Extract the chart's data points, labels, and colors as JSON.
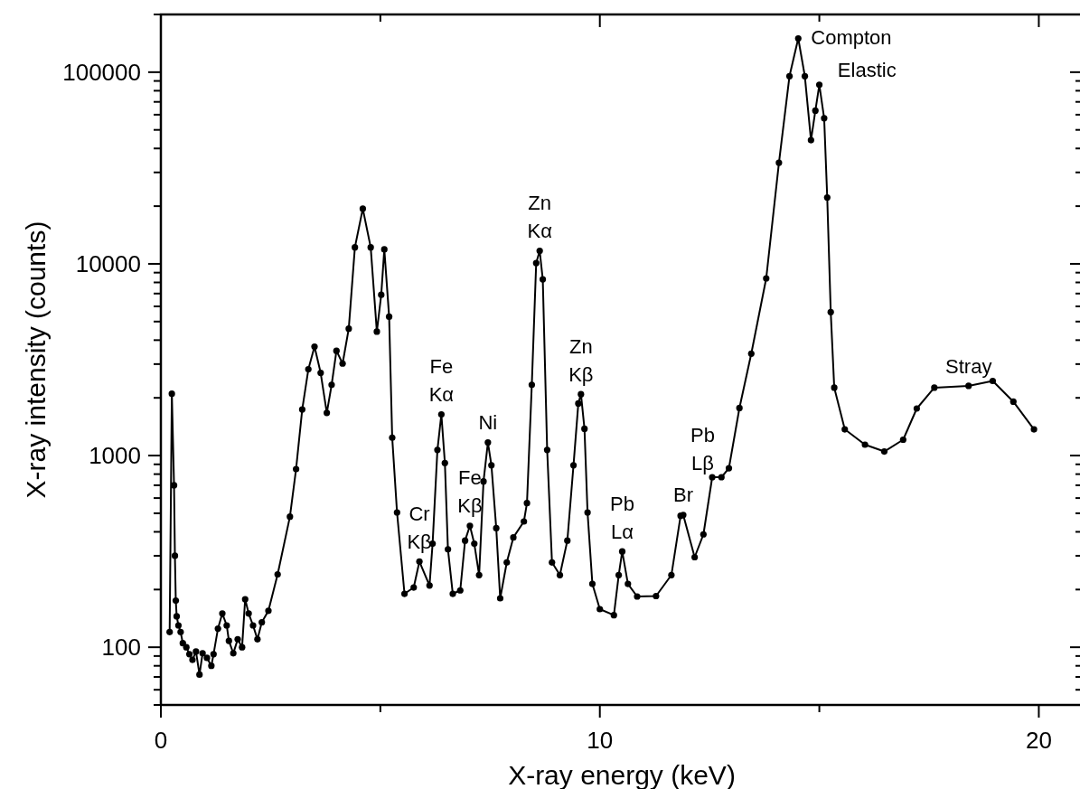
{
  "chart_data": {
    "type": "line",
    "xlabel": "X-ray energy (keV)",
    "ylabel": "X-ray intensity (counts)",
    "log": "y",
    "grid": false,
    "marker": "circle",
    "line_style": "solid",
    "xlim": [
      0,
      21
    ],
    "xticks": [
      0,
      {
        "value": 5,
        "label": null
      },
      10,
      {
        "value": 15,
        "label": null
      },
      20
    ],
    "ylim": [
      50,
      200000
    ],
    "yticks": [
      {
        "value": 50,
        "label": null
      },
      {
        "value": 60,
        "label": null
      },
      {
        "value": 70,
        "label": null
      },
      {
        "value": 80,
        "label": null
      },
      {
        "value": 90,
        "label": null
      },
      100,
      {
        "value": 200,
        "label": null
      },
      {
        "value": 300,
        "label": null
      },
      {
        "value": 400,
        "label": null
      },
      {
        "value": 500,
        "label": null
      },
      {
        "value": 600,
        "label": null
      },
      {
        "value": 700,
        "label": null
      },
      {
        "value": 800,
        "label": null
      },
      {
        "value": 900,
        "label": null
      },
      1000,
      {
        "value": 2000,
        "label": null
      },
      {
        "value": 3000,
        "label": null
      },
      {
        "value": 4000,
        "label": null
      },
      {
        "value": 5000,
        "label": null
      },
      {
        "value": 6000,
        "label": null
      },
      {
        "value": 7000,
        "label": null
      },
      {
        "value": 8000,
        "label": null
      },
      {
        "value": 9000,
        "label": null
      },
      10000,
      {
        "value": 20000,
        "label": null
      },
      {
        "value": 30000,
        "label": null
      },
      {
        "value": 40000,
        "label": null
      },
      {
        "value": 50000,
        "label": null
      },
      {
        "value": 60000,
        "label": null
      },
      {
        "value": 70000,
        "label": null
      },
      {
        "value": 80000,
        "label": null
      },
      {
        "value": 90000,
        "label": null
      },
      100000,
      {
        "value": 200000,
        "label": null
      }
    ],
    "series": [
      {
        "color": "#000000",
        "x": [
          0.2,
          0.25,
          0.3,
          0.32,
          0.34,
          0.36,
          0.4,
          0.45,
          0.5,
          0.58,
          0.65,
          0.72,
          0.8,
          0.88,
          0.95,
          1.05,
          1.15,
          1.2,
          1.3,
          1.4,
          1.5,
          1.55,
          1.65,
          1.75,
          1.85,
          1.92,
          2.0,
          2.1,
          2.2,
          2.3,
          2.45,
          2.66,
          2.94,
          3.08,
          3.22,
          3.36,
          3.5,
          3.64,
          3.78,
          3.89,
          4.0,
          4.14,
          4.28,
          4.42,
          4.6,
          4.78,
          4.92,
          5.02,
          5.09,
          5.2,
          5.27,
          5.38,
          5.55,
          5.76,
          5.89,
          6.12,
          6.19,
          6.3,
          6.39,
          6.47,
          6.54,
          6.65,
          6.82,
          6.93,
          7.04,
          7.14,
          7.25,
          7.35,
          7.45,
          7.53,
          7.64,
          7.73,
          7.88,
          8.03,
          8.27,
          8.34,
          8.45,
          8.55,
          8.63,
          8.7,
          8.8,
          8.91,
          9.09,
          9.26,
          9.4,
          9.51,
          9.57,
          9.65,
          9.72,
          9.83,
          10.0,
          10.32,
          10.43,
          10.51,
          10.64,
          10.85,
          11.28,
          11.63,
          11.84,
          11.9,
          12.16,
          12.36,
          12.56,
          12.77,
          12.94,
          13.18,
          13.45,
          13.79,
          14.08,
          14.32,
          14.52,
          14.67,
          14.81,
          14.91,
          15.0,
          15.11,
          15.18,
          15.26,
          15.34,
          15.58,
          16.04,
          16.48,
          16.91,
          17.22,
          17.62,
          18.4,
          18.95,
          19.42,
          19.89
        ],
        "values": [
          120,
          2100,
          700,
          300,
          175,
          145,
          130,
          120,
          105,
          100,
          92,
          86,
          95,
          72,
          93,
          88,
          80,
          92,
          125,
          150,
          130,
          108,
          93,
          110,
          100,
          178,
          150,
          130,
          110,
          135,
          155,
          240,
          480,
          850,
          1740,
          2820,
          3700,
          2700,
          1670,
          2340,
          3520,
          3020,
          4590,
          12200,
          19400,
          12200,
          4430,
          6900,
          11900,
          5300,
          1240,
          505,
          190,
          205,
          280,
          210,
          347,
          1070,
          1640,
          915,
          324,
          190,
          198,
          360,
          430,
          347,
          238,
          733,
          1170,
          890,
          418,
          180,
          277,
          374,
          453,
          565,
          2340,
          10100,
          11700,
          8300,
          1070,
          277,
          238,
          360,
          890,
          1870,
          2090,
          1380,
          505,
          214,
          158,
          147,
          238,
          316,
          214,
          184,
          185,
          238,
          485,
          490,
          295,
          388,
          771,
          771,
          859,
          1770,
          3400,
          8400,
          33700,
          95300,
          150000,
          95300,
          44200,
          63000,
          85900,
          57500,
          22200,
          5600,
          2260,
          1370,
          1140,
          1050,
          1210,
          1760,
          2260,
          2310,
          2450,
          1910,
          1370
        ]
      }
    ],
    "annotations": [
      {
        "text": "Compton",
        "x": 14.52,
        "y": 150000
      },
      {
        "text": "Elastic",
        "x": 15.0,
        "y": 85900
      },
      {
        "text": "Zn Kα",
        "x": 8.63,
        "y": 11700
      },
      {
        "text": "Zn Kβ",
        "x": 9.57,
        "y": 2090
      },
      {
        "text": "Fe Kα",
        "x": 6.39,
        "y": 1640
      },
      {
        "text": "Ni",
        "x": 7.45,
        "y": 1170
      },
      {
        "text": "Cr Kβ",
        "x": 5.89,
        "y": 280
      },
      {
        "text": "Fe Kβ",
        "x": 7.04,
        "y": 430
      },
      {
        "text": "Pb Lα",
        "x": 10.51,
        "y": 316
      },
      {
        "text": "Br",
        "x": 11.9,
        "y": 490
      },
      {
        "text": "Pb Lβ",
        "x": 12.77,
        "y": 771
      },
      {
        "text": "Stray",
        "x": 18.4,
        "y": 2310
      }
    ]
  }
}
